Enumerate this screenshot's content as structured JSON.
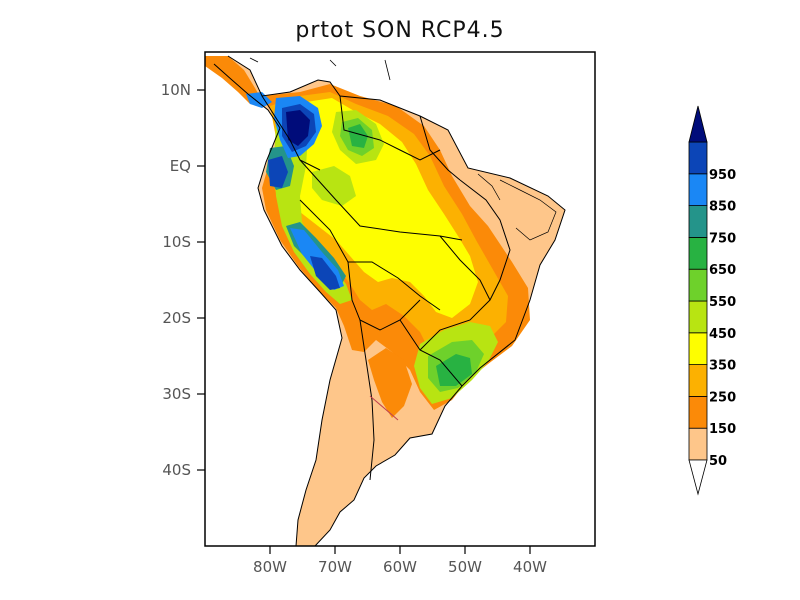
{
  "title": "prtot SON RCP4.5",
  "map": {
    "lon_range": [
      -90,
      -30
    ],
    "lat_range": [
      -50,
      15
    ],
    "lat_ticks": [
      {
        "value": 10,
        "label": "10N"
      },
      {
        "value": 0,
        "label": "EQ"
      },
      {
        "value": -10,
        "label": "10S"
      },
      {
        "value": -20,
        "label": "20S"
      },
      {
        "value": -30,
        "label": "30S"
      },
      {
        "value": -40,
        "label": "40S"
      }
    ],
    "lon_ticks": [
      {
        "value": -80,
        "label": "80W"
      },
      {
        "value": -70,
        "label": "70W"
      },
      {
        "value": -60,
        "label": "60W"
      },
      {
        "value": -50,
        "label": "50W"
      },
      {
        "value": -40,
        "label": "40W"
      }
    ]
  },
  "colorbar": {
    "levels": [
      "50",
      "150",
      "250",
      "350",
      "450",
      "550",
      "650",
      "750",
      "850",
      "950"
    ],
    "colors": [
      "#fec68a",
      "#fb8a08",
      "#fcb101",
      "#fefe00",
      "#b8e412",
      "#6ed12b",
      "#28b242",
      "#24948a",
      "#1a87f5",
      "#0c45b7"
    ],
    "low_color": "#ffffff",
    "high_color": "#000c7a"
  }
}
